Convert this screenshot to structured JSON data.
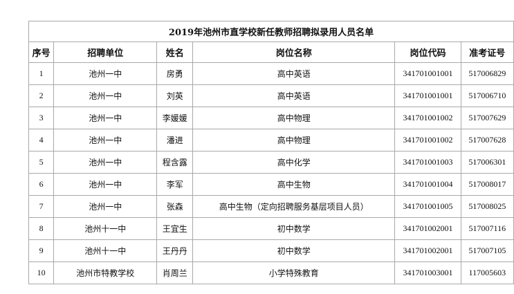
{
  "title": "2019年池州市直学校新任教师招聘拟录用人员名单",
  "headers": {
    "index": "序号",
    "unit": "招聘单位",
    "name": "姓名",
    "position": "岗位名称",
    "code": "岗位代码",
    "exam_no": "准考证号"
  },
  "rows": [
    {
      "index": "1",
      "unit": "池州一中",
      "name": "房勇",
      "position": "高中英语",
      "code": "341701001001",
      "exam_no": "517006829"
    },
    {
      "index": "2",
      "unit": "池州一中",
      "name": "刘英",
      "position": "高中英语",
      "code": "341701001001",
      "exam_no": "517006710"
    },
    {
      "index": "3",
      "unit": "池州一中",
      "name": "李媛媛",
      "position": "高中物理",
      "code": "341701001002",
      "exam_no": "517007629"
    },
    {
      "index": "4",
      "unit": "池州一中",
      "name": "潘进",
      "position": "高中物理",
      "code": "341701001002",
      "exam_no": "517007628"
    },
    {
      "index": "5",
      "unit": "池州一中",
      "name": "程含露",
      "position": "高中化学",
      "code": "341701001003",
      "exam_no": "517006301"
    },
    {
      "index": "6",
      "unit": "池州一中",
      "name": "李军",
      "position": "高中生物",
      "code": "341701001004",
      "exam_no": "517008017"
    },
    {
      "index": "7",
      "unit": "池州一中",
      "name": "张森",
      "position": "高中生物（定向招聘服务基层项目人员）",
      "code": "341701001005",
      "exam_no": "517008025"
    },
    {
      "index": "8",
      "unit": "池州十一中",
      "name": "王宜生",
      "position": "初中数学",
      "code": "341701002001",
      "exam_no": "517007116"
    },
    {
      "index": "9",
      "unit": "池州十一中",
      "name": "王丹丹",
      "position": "初中数学",
      "code": "341701002001",
      "exam_no": "517007105"
    },
    {
      "index": "10",
      "unit": "池州市特教学校",
      "name": "肖周兰",
      "position": "小学特殊教育",
      "code": "341701003001",
      "exam_no": "117005603"
    }
  ]
}
